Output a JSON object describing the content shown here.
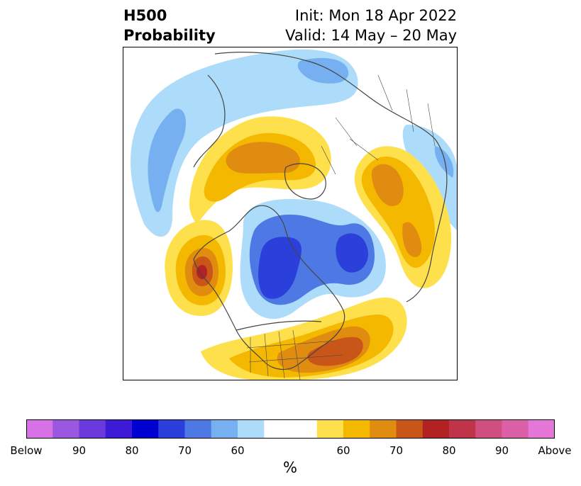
{
  "title": {
    "left_line1": "H500",
    "left_line2": "Probability",
    "right_line1": "Init: Mon 18 Apr 2022",
    "right_line2": "Valid: 14 May – 20 May"
  },
  "colorbar": {
    "colors": [
      "#d772e6",
      "#9b57e0",
      "#6a3adc",
      "#3d1bd6",
      "#0000d0",
      "#2b3fda",
      "#4e79e4",
      "#76b0f0",
      "#acdcfa",
      "#ffffff",
      "#ffffff",
      "#fee04c",
      "#f4b800",
      "#e08c10",
      "#c85618",
      "#b22222",
      "#c0344a",
      "#d04e80",
      "#dc60a8",
      "#e477d8"
    ],
    "tick_labels": [
      "Below",
      "90",
      "80",
      "70",
      "60",
      "60",
      "70",
      "80",
      "90",
      "Above"
    ],
    "units": "%"
  }
}
